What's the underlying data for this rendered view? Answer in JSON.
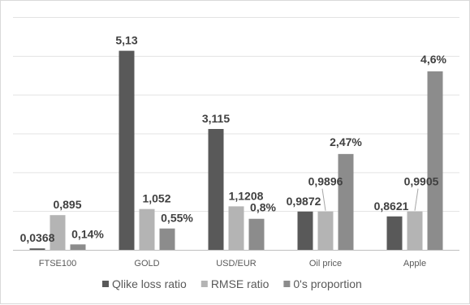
{
  "chart_data": {
    "type": "bar",
    "title": "",
    "xlabel": "",
    "ylabel": "",
    "categories": [
      "FTSE100",
      "GOLD",
      "USD/EUR",
      "Oil price",
      "Apple"
    ],
    "ylim": [
      0,
      6
    ],
    "grid": true,
    "legend_position": "bottom",
    "series": [
      {
        "name": "Qlike loss ratio",
        "color": "#595959",
        "values": [
          0.0368,
          5.13,
          3.115,
          0.9872,
          0.8621
        ],
        "labels": [
          "0,0368",
          "5,13",
          "3,115",
          "0,9872",
          "0,8621"
        ]
      },
      {
        "name": "RMSE ratio",
        "color": "#b4b4b4",
        "values": [
          0.895,
          1.052,
          1.1208,
          0.9896,
          0.9905
        ],
        "labels": [
          "0,895",
          "1,052",
          "1,1208",
          "0,9896",
          "0,9905"
        ]
      },
      {
        "name": "0's proportion",
        "color": "#8c8c8c",
        "values": [
          0.14,
          0.55,
          0.8,
          2.47,
          4.6
        ],
        "labels": [
          "0,14%",
          "0,55%",
          "0,8%",
          "2,47%",
          "4,6%"
        ]
      }
    ]
  }
}
